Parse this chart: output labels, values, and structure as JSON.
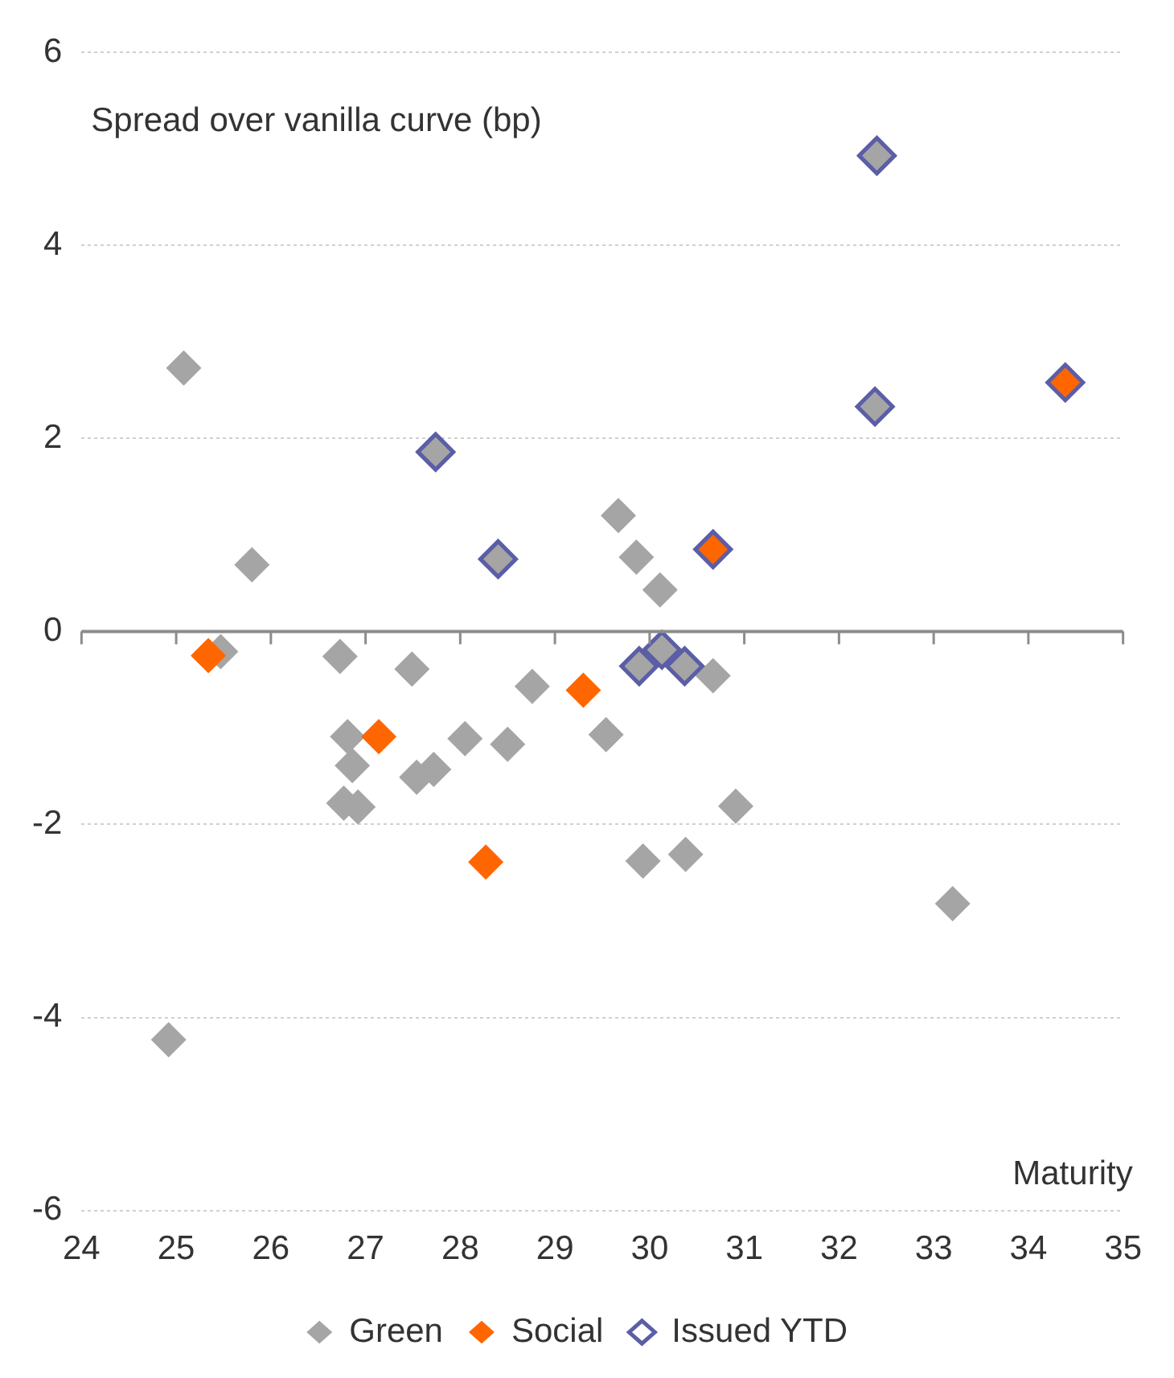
{
  "chart_data": {
    "type": "scatter",
    "ylabel": "Spread over vanilla curve (bp)",
    "xlabel": "Maturity",
    "xlim": [
      24,
      35
    ],
    "xticks": [
      24,
      25,
      26,
      27,
      28,
      29,
      30,
      31,
      32,
      33,
      34,
      35
    ],
    "ylim": [
      -6,
      6
    ],
    "yticks": [
      -6,
      -4,
      -2,
      0,
      2,
      4,
      6
    ],
    "grid": "y",
    "legend": "bottom",
    "marker": "diamond",
    "series": [
      {
        "name": "Green",
        "color": "#a5a5a5",
        "x": [
          25.08,
          24.92,
          25.47,
          25.8,
          26.73,
          27.49,
          26.81,
          26.86,
          26.77,
          26.92,
          27.54,
          27.72,
          28.05,
          27.74,
          28.4,
          28.76,
          28.5,
          29.54,
          29.67,
          29.86,
          30.11,
          29.89,
          30.13,
          30.37,
          30.67,
          30.91,
          29.93,
          30.38,
          32.4,
          32.38,
          33.2
        ],
        "values": [
          2.73,
          -4.23,
          -0.21,
          0.69,
          -0.26,
          -0.39,
          -1.09,
          -1.39,
          -1.78,
          -1.82,
          -1.51,
          -1.43,
          -1.11,
          1.86,
          0.75,
          -0.57,
          -1.17,
          -1.07,
          1.2,
          0.77,
          0.43,
          -0.36,
          -0.19,
          -0.36,
          -0.46,
          -1.81,
          -2.38,
          -2.31,
          4.93,
          2.33,
          -2.82
        ]
      },
      {
        "name": "Social",
        "color": "#ff6600",
        "x": [
          25.34,
          27.14,
          29.3,
          28.27,
          30.67,
          34.39
        ],
        "values": [
          -0.25,
          -1.09,
          -0.61,
          -2.39,
          0.85,
          2.58
        ]
      },
      {
        "name": "Issued YTD",
        "color": "#5b5ea6",
        "marker": "diamond_open",
        "x": [
          27.74,
          28.4,
          29.89,
          30.13,
          30.37,
          30.67,
          32.4,
          32.38,
          34.39
        ],
        "values": [
          1.86,
          0.75,
          -0.36,
          -0.19,
          -0.36,
          0.85,
          4.93,
          2.33,
          2.58
        ]
      }
    ]
  }
}
